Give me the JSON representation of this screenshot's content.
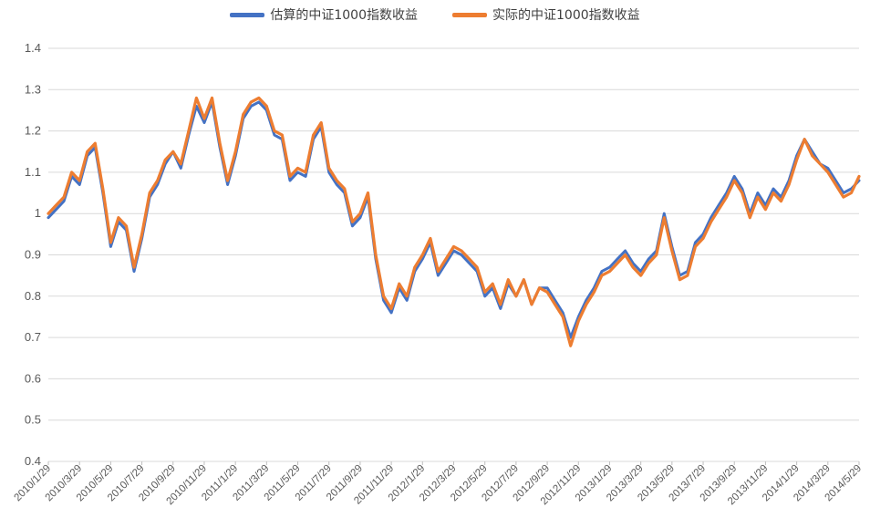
{
  "chart_data": {
    "type": "line",
    "title": "",
    "legend": {
      "position": "top-center"
    },
    "grid": true,
    "ylim": [
      0.4,
      1.4
    ],
    "yticks": [
      "0.4",
      "0.5",
      "0.6",
      "0.7",
      "0.8",
      "0.9",
      "1",
      "1.1",
      "1.2",
      "1.3",
      "1.4"
    ],
    "xticks": [
      "2010/1/29",
      "2010/3/29",
      "2010/5/29",
      "2010/7/29",
      "2010/9/29",
      "2010/11/29",
      "2011/1/29",
      "2011/3/29",
      "2011/5/29",
      "2011/7/29",
      "2011/9/29",
      "2011/11/29",
      "2012/1/29",
      "2012/3/29",
      "2012/5/29",
      "2012/7/29",
      "2012/9/29",
      "2012/11/29",
      "2013/1/29",
      "2013/3/29",
      "2013/5/29",
      "2013/7/29",
      "2013/9/29",
      "2013/11/29",
      "2014/1/29",
      "2014/3/29",
      "2014/5/29"
    ],
    "x": [
      "2010/1/29",
      "2010/2/12",
      "2010/2/26",
      "2010/3/12",
      "2010/3/29",
      "2010/4/13",
      "2010/4/27",
      "2010/5/12",
      "2010/5/29",
      "2010/6/12",
      "2010/6/28",
      "2010/7/12",
      "2010/7/29",
      "2010/8/13",
      "2010/8/27",
      "2010/9/13",
      "2010/9/29",
      "2010/10/15",
      "2010/10/29",
      "2010/11/12",
      "2010/11/29",
      "2010/12/13",
      "2010/12/28",
      "2011/1/13",
      "2011/1/29",
      "2011/2/14",
      "2011/2/28",
      "2011/3/14",
      "2011/3/29",
      "2011/4/13",
      "2011/4/28",
      "2011/5/13",
      "2011/5/29",
      "2011/6/13",
      "2011/6/28",
      "2011/7/13",
      "2011/7/29",
      "2011/8/12",
      "2011/8/29",
      "2011/9/13",
      "2011/9/29",
      "2011/10/14",
      "2011/10/28",
      "2011/11/14",
      "2011/11/29",
      "2011/12/13",
      "2011/12/28",
      "2012/1/13",
      "2012/1/29",
      "2012/2/13",
      "2012/2/28",
      "2012/3/13",
      "2012/3/29",
      "2012/4/13",
      "2012/4/27",
      "2012/5/14",
      "2012/5/29",
      "2012/6/13",
      "2012/6/28",
      "2012/7/13",
      "2012/7/29",
      "2012/8/13",
      "2012/8/28",
      "2012/9/13",
      "2012/9/29",
      "2012/10/15",
      "2012/10/29",
      "2012/11/13",
      "2012/11/29",
      "2012/12/13",
      "2012/12/28",
      "2013/1/14",
      "2013/1/29",
      "2013/2/13",
      "2013/2/28",
      "2013/3/14",
      "2013/3/29",
      "2013/4/12",
      "2013/4/26",
      "2013/5/13",
      "2013/5/29",
      "2013/6/13",
      "2013/6/28",
      "2013/7/12",
      "2013/7/29",
      "2013/8/12",
      "2013/8/28",
      "2013/9/12",
      "2013/9/29",
      "2013/10/14",
      "2013/10/29",
      "2013/11/13",
      "2013/11/29",
      "2013/12/13",
      "2013/12/27",
      "2014/1/13",
      "2014/1/29",
      "2014/2/13",
      "2014/2/27",
      "2014/3/13",
      "2014/3/29",
      "2014/4/14",
      "2014/4/28",
      "2014/5/13",
      "2014/5/29"
    ],
    "series": [
      {
        "name": "估算的中证1000指数收益",
        "color": "#4472C4",
        "values": [
          0.99,
          1.01,
          1.03,
          1.09,
          1.07,
          1.14,
          1.16,
          1.05,
          0.92,
          0.98,
          0.96,
          0.86,
          0.94,
          1.04,
          1.07,
          1.12,
          1.15,
          1.11,
          1.19,
          1.26,
          1.22,
          1.27,
          1.16,
          1.07,
          1.14,
          1.23,
          1.26,
          1.27,
          1.25,
          1.19,
          1.18,
          1.08,
          1.1,
          1.09,
          1.18,
          1.21,
          1.1,
          1.07,
          1.05,
          0.97,
          0.99,
          1.04,
          0.89,
          0.79,
          0.76,
          0.82,
          0.79,
          0.86,
          0.89,
          0.93,
          0.85,
          0.88,
          0.91,
          0.9,
          0.88,
          0.86,
          0.8,
          0.82,
          0.77,
          0.83,
          0.8,
          0.84,
          0.78,
          0.82,
          0.82,
          0.79,
          0.76,
          0.7,
          0.75,
          0.79,
          0.82,
          0.86,
          0.87,
          0.89,
          0.91,
          0.88,
          0.86,
          0.89,
          0.91,
          1.0,
          0.92,
          0.85,
          0.86,
          0.93,
          0.95,
          0.99,
          1.02,
          1.05,
          1.09,
          1.06,
          1.0,
          1.05,
          1.02,
          1.06,
          1.04,
          1.08,
          1.14,
          1.18,
          1.15,
          1.12,
          1.11,
          1.08,
          1.05,
          1.06,
          1.08
        ]
      },
      {
        "name": "实际的中证1000指数收益",
        "color": "#ED7D31",
        "values": [
          1.0,
          1.02,
          1.04,
          1.1,
          1.08,
          1.15,
          1.17,
          1.06,
          0.93,
          0.99,
          0.97,
          0.87,
          0.95,
          1.05,
          1.08,
          1.13,
          1.15,
          1.12,
          1.2,
          1.28,
          1.23,
          1.28,
          1.17,
          1.08,
          1.15,
          1.24,
          1.27,
          1.28,
          1.26,
          1.2,
          1.19,
          1.09,
          1.11,
          1.1,
          1.19,
          1.22,
          1.11,
          1.08,
          1.06,
          0.98,
          1.0,
          1.05,
          0.9,
          0.8,
          0.77,
          0.83,
          0.8,
          0.87,
          0.9,
          0.94,
          0.86,
          0.89,
          0.92,
          0.91,
          0.89,
          0.87,
          0.81,
          0.83,
          0.78,
          0.84,
          0.8,
          0.84,
          0.78,
          0.82,
          0.81,
          0.78,
          0.75,
          0.68,
          0.74,
          0.78,
          0.81,
          0.85,
          0.86,
          0.88,
          0.9,
          0.87,
          0.85,
          0.88,
          0.9,
          0.99,
          0.91,
          0.84,
          0.85,
          0.92,
          0.94,
          0.98,
          1.01,
          1.04,
          1.08,
          1.05,
          0.99,
          1.04,
          1.01,
          1.05,
          1.03,
          1.07,
          1.13,
          1.18,
          1.14,
          1.12,
          1.1,
          1.07,
          1.04,
          1.05,
          1.09
        ]
      }
    ]
  }
}
